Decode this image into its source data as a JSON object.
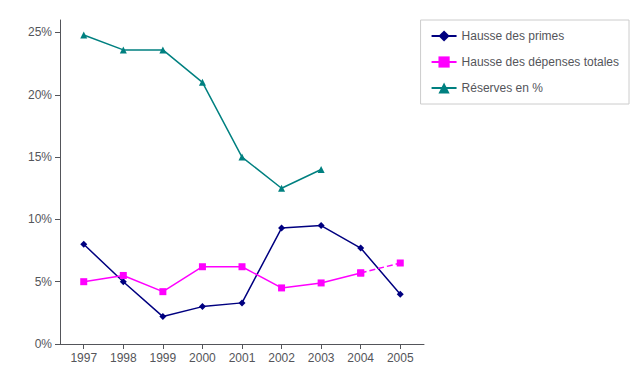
{
  "chart_data": {
    "type": "line",
    "x": [
      1997,
      1998,
      1999,
      2000,
      2001,
      2002,
      2003,
      2004,
      2005
    ],
    "xlim": [
      1996.4,
      2005.6
    ],
    "xticks": [
      1997,
      1998,
      1999,
      2000,
      2001,
      2002,
      2003,
      2004,
      2005
    ],
    "ylim": [
      0,
      0.26
    ],
    "yticks": [
      {
        "value": 0,
        "label": "0%"
      },
      {
        "value": 0.05,
        "label": "5%"
      },
      {
        "value": 0.1,
        "label": "10%"
      },
      {
        "value": 0.15,
        "label": "15%"
      },
      {
        "value": 0.2,
        "label": "20%"
      },
      {
        "value": 0.25,
        "label": "25%"
      }
    ],
    "grid": false,
    "legend": "right",
    "series": [
      {
        "name": "Hausse des primes",
        "color": "#000080",
        "marker": "diamond",
        "line_style": "solid",
        "values": [
          0.08,
          0.05,
          0.022,
          0.03,
          0.033,
          0.093,
          0.095,
          0.077,
          0.04
        ]
      },
      {
        "name": "Hausse des dépenses totales",
        "color": "#FF00FF",
        "marker": "square",
        "line_style": "solid",
        "values": [
          0.05,
          0.055,
          0.042,
          0.062,
          0.062,
          0.045,
          0.049,
          0.057,
          null
        ]
      },
      {
        "color": "#FF00FF",
        "marker": "square",
        "line_style": "dashed",
        "values": [
          null,
          null,
          null,
          null,
          null,
          null,
          null,
          0.057,
          0.065
        ]
      },
      {
        "name": "Réserves en %",
        "color": "#008080",
        "marker": "triangle",
        "line_style": "solid",
        "values": [
          0.248,
          0.236,
          0.236,
          0.21,
          0.15,
          0.125,
          0.14,
          null,
          null
        ]
      }
    ]
  }
}
